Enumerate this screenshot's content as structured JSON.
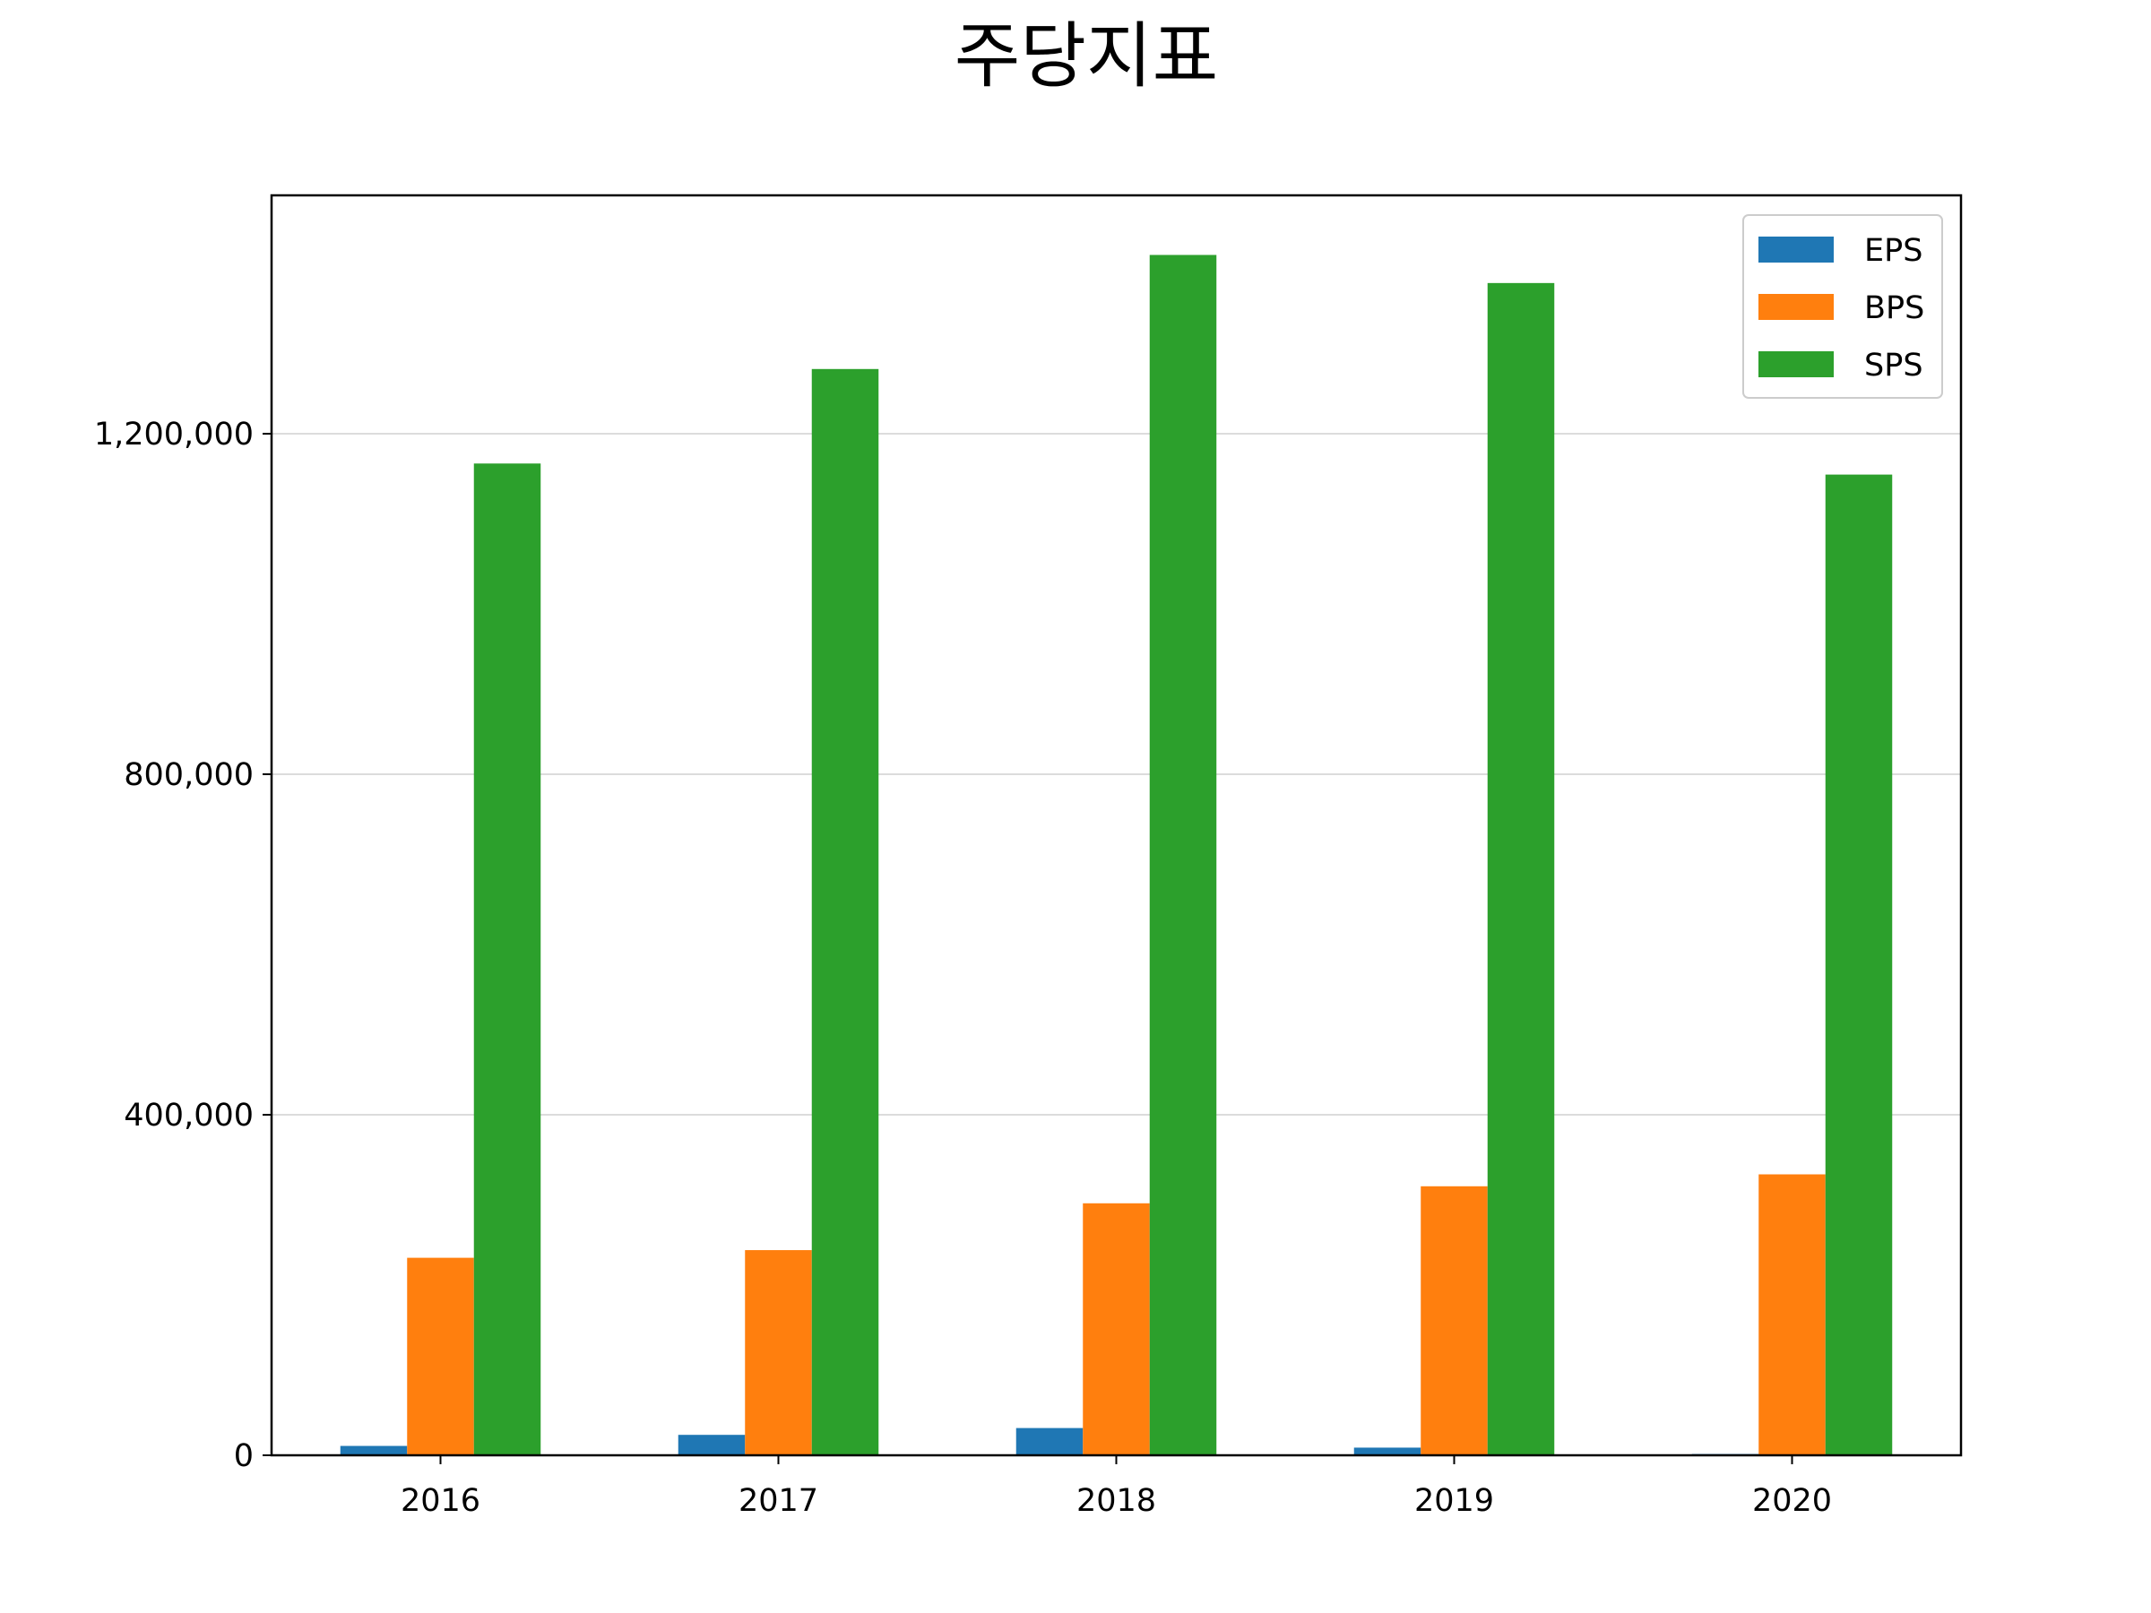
{
  "chart_data": {
    "type": "bar",
    "title": "주당지표",
    "xlabel": "",
    "ylabel": "",
    "categories": [
      "2016",
      "2017",
      "2018",
      "2019",
      "2020"
    ],
    "series": [
      {
        "name": "EPS",
        "color": "#1f77b4",
        "values": [
          11000,
          24000,
          32000,
          9000,
          1500
        ]
      },
      {
        "name": "BPS",
        "color": "#ff7f0e",
        "values": [
          232000,
          241000,
          296000,
          316000,
          330000
        ]
      },
      {
        "name": "SPS",
        "color": "#2ca02c",
        "values": [
          1165000,
          1276000,
          1410000,
          1377000,
          1152000
        ]
      }
    ],
    "ylim": [
      0,
      1480000
    ],
    "yticks": [
      0,
      400000,
      800000,
      1200000
    ],
    "ytick_labels": [
      "0",
      "400,000",
      "800,000",
      "1,200,000"
    ],
    "grid": "y",
    "legend": "top-right"
  }
}
